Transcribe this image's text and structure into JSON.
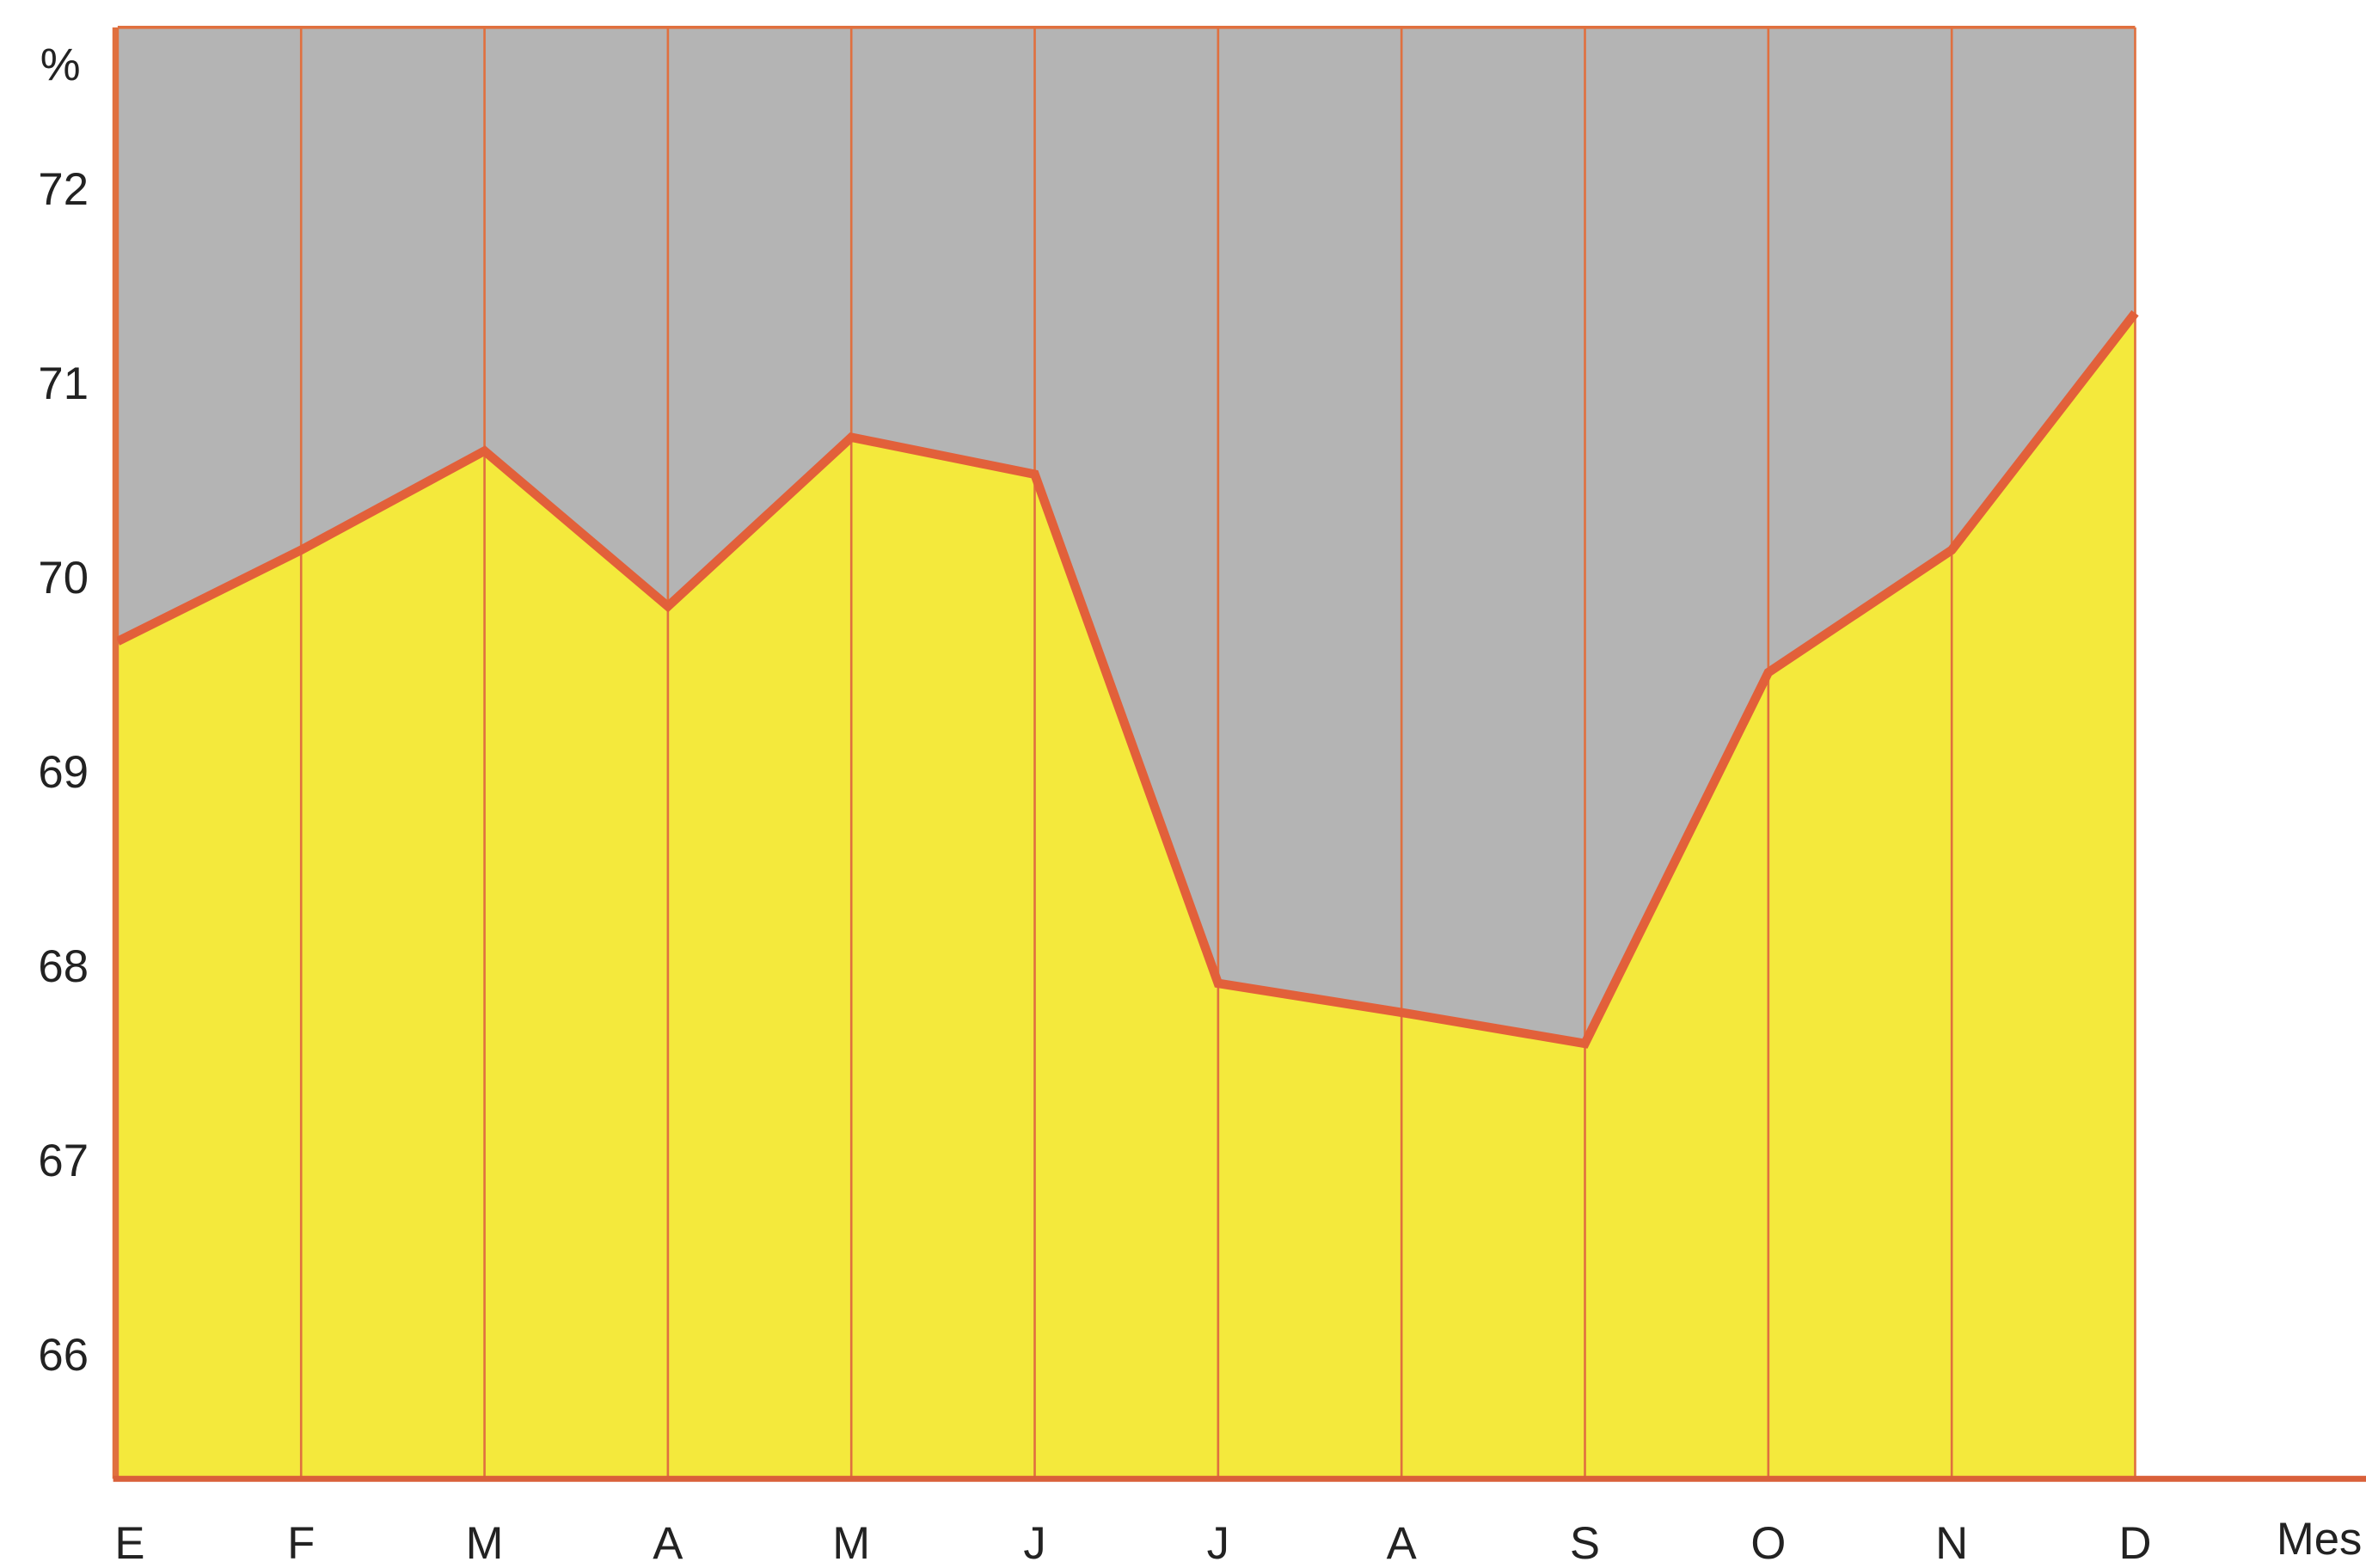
{
  "chart_data": {
    "type": "area",
    "y_label": "%",
    "x_label": "Mes",
    "categories": [
      "E",
      "F",
      "M",
      "A",
      "M",
      "J",
      "J",
      "A",
      "S",
      "O",
      "N",
      "D"
    ],
    "series": [
      {
        "name": null,
        "color": "#f4e93c",
        "line_color": "#e2603a",
        "values": [
          69.69,
          70.16,
          70.67,
          69.87,
          70.74,
          70.55,
          67.93,
          67.78,
          67.62,
          69.53,
          70.16,
          71.38
        ]
      }
    ],
    "background_color": "#b4b4b4",
    "ylim": [
      65.38,
      72.85
    ],
    "yticks": [
      66,
      67,
      68,
      69,
      70,
      71,
      72
    ]
  }
}
